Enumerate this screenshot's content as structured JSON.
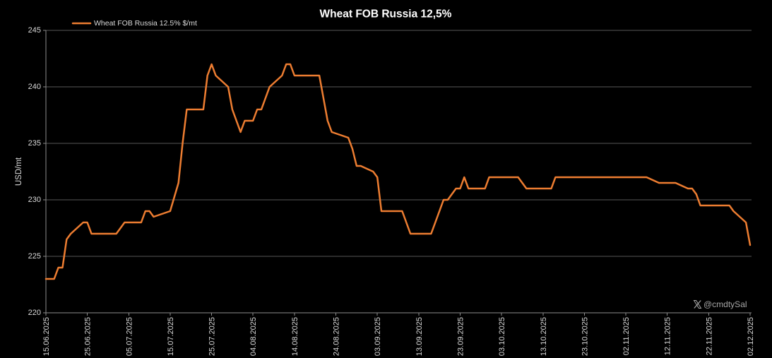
{
  "chart_data": {
    "type": "line",
    "title": "Wheat FOB Russia 12,5%",
    "ylabel": "USD/mt",
    "ylim": [
      220,
      245
    ],
    "yticks": [
      220,
      225,
      230,
      235,
      240,
      245
    ],
    "xlim": [
      "15.06.2025",
      "02.12.2025"
    ],
    "xticks": [
      "15.06.2025",
      "25.06.2025",
      "05.07.2025",
      "15.07.2025",
      "25.07.2025",
      "04.08.2025",
      "14.08.2025",
      "24.08.2025",
      "03.09.2025",
      "13.09.2025",
      "23.09.2025",
      "03.10.2025",
      "13.10.2025",
      "23.10.2025",
      "02.11.2025",
      "12.11.2025",
      "22.11.2025",
      "02.12.2025"
    ],
    "grid": "horizontal",
    "legend": "top-left",
    "series": [
      {
        "name": "Wheat FOB Russia 12.5% $/mt",
        "color": "#ED7D31",
        "x": [
          "15.06.2025",
          "17.06.2025",
          "18.06.2025",
          "19.06.2025",
          "20.06.2025",
          "21.06.2025",
          "24.06.2025",
          "25.06.2025",
          "26.06.2025",
          "02.07.2025",
          "04.07.2025",
          "08.07.2025",
          "09.07.2025",
          "10.07.2025",
          "11.07.2025",
          "15.07.2025",
          "17.07.2025",
          "18.07.2025",
          "19.07.2025",
          "23.07.2025",
          "24.07.2025",
          "25.07.2025",
          "26.07.2025",
          "29.07.2025",
          "30.07.2025",
          "01.08.2025",
          "02.08.2025",
          "04.08.2025",
          "05.08.2025",
          "06.08.2025",
          "08.08.2025",
          "11.08.2025",
          "12.08.2025",
          "13.08.2025",
          "14.08.2025",
          "20.08.2025",
          "22.08.2025",
          "23.08.2025",
          "27.08.2025",
          "28.08.2025",
          "29.08.2025",
          "30.08.2025",
          "02.09.2025",
          "03.09.2025",
          "04.09.2025",
          "09.09.2025",
          "11.09.2025",
          "16.09.2025",
          "17.09.2025",
          "19.09.2025",
          "20.09.2025",
          "22.09.2025",
          "23.09.2025",
          "24.09.2025",
          "25.09.2025",
          "29.09.2025",
          "30.09.2025",
          "07.10.2025",
          "09.10.2025",
          "15.10.2025",
          "16.10.2025",
          "07.11.2025",
          "10.11.2025",
          "14.11.2025",
          "17.11.2025",
          "18.11.2025",
          "19.11.2025",
          "20.11.2025",
          "27.11.2025",
          "28.11.2025",
          "01.12.2025",
          "02.12.2025"
        ],
        "y": [
          223,
          223,
          224,
          224,
          226.5,
          227,
          228,
          228,
          227,
          227,
          228,
          228,
          229,
          229,
          228.5,
          229,
          231.5,
          235,
          238,
          238,
          241,
          242,
          241,
          240,
          238,
          236,
          237,
          237,
          238,
          238,
          240,
          241,
          242,
          242,
          241,
          241,
          237,
          236,
          235.5,
          234.5,
          233,
          233,
          232.5,
          232,
          229,
          229,
          227,
          227,
          228,
          230,
          230,
          231,
          231,
          232,
          231,
          231,
          232,
          232,
          231,
          231,
          232,
          232,
          231.5,
          231.5,
          231,
          231,
          230.5,
          229.5,
          229.5,
          229,
          228,
          226
        ]
      }
    ]
  },
  "watermark": {
    "icon": "x-logo-icon",
    "handle": "@cmdtySal",
    "color": "#A6A6A6"
  }
}
